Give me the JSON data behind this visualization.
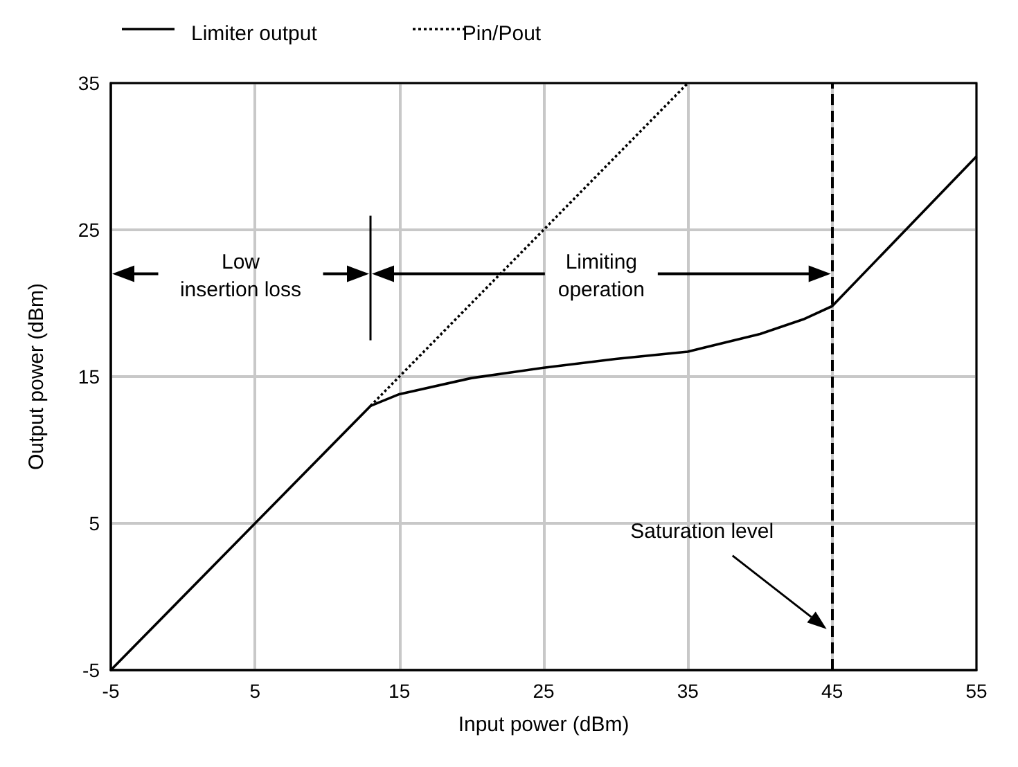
{
  "chart_data": {
    "type": "line",
    "xlabel": "Input power (dBm)",
    "ylabel": "Output power (dBm)",
    "series": [
      {
        "name": "Limiter output",
        "color": "#000000",
        "line_style": "solid",
        "x": [
          -5,
          13,
          15,
          20,
          25,
          30,
          35,
          40,
          43,
          45,
          55
        ],
        "values": [
          -5,
          13,
          13.8,
          14.9,
          15.6,
          16.2,
          16.7,
          17.9,
          18.9,
          19.8,
          30
        ]
      },
      {
        "name": "Pin/Pout",
        "color": "#000000",
        "line_style": "dotted",
        "x": [
          13,
          35
        ],
        "values": [
          13,
          35
        ]
      }
    ],
    "xlim": [
      -5,
      55
    ],
    "ylim": [
      -5,
      35
    ],
    "xticks": [
      -5,
      5,
      15,
      25,
      35,
      45,
      55
    ],
    "yticks": [
      -5,
      5,
      15,
      25,
      35
    ],
    "grid": true,
    "legend": "top left",
    "marker": "none",
    "ref_lines": [
      {
        "axis": "x",
        "value": 45,
        "color": "#000000",
        "line_style": "dashed"
      }
    ],
    "annotations": [
      "Low\ninsertion loss",
      "Limiting\noperation",
      "Saturation level"
    ]
  }
}
